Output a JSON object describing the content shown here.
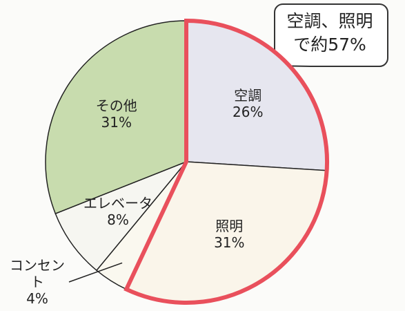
{
  "chart_data": {
    "type": "pie",
    "categories": [
      "空調",
      "照明",
      "コンセント",
      "エレベータ",
      "その他"
    ],
    "values": [
      26,
      31,
      4,
      8,
      31
    ],
    "value_labels": [
      "26%",
      "31%",
      "4%",
      "8%",
      "31%"
    ],
    "colors": [
      "#e6e6ef",
      "#faf5ea",
      "#faf8ef",
      "#f6f6f1",
      "#c8dcae"
    ],
    "highlight": [
      "空調",
      "照明"
    ],
    "highlight_color": "#e9505c",
    "annotation": "空調、照明で約57%"
  }
}
